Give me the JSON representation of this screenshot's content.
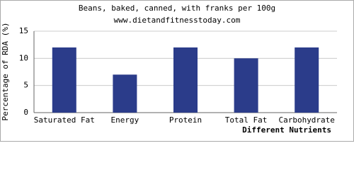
{
  "chart_data": {
    "type": "bar",
    "title": "Beans, baked, canned, with franks per 100g",
    "subtitle": "www.dietandfitnesstoday.com",
    "x_label": "Different Nutrients",
    "y_label": "Percentage of RDA (%)",
    "categories": [
      "Saturated Fat",
      "Energy",
      "Protein",
      "Total Fat",
      "Carbohydrate"
    ],
    "values": [
      12,
      7,
      12,
      10,
      12
    ],
    "color": "#2b3c8a",
    "ylim": [
      0,
      15
    ],
    "yticks": [
      0,
      5,
      10,
      15
    ],
    "grid": true
  }
}
